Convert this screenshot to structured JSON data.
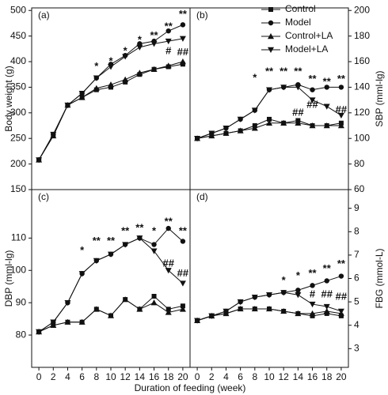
{
  "chart_data": [
    {
      "type": "line",
      "panel_label": "(a)",
      "ylabel": "Body weight (g)",
      "x": [
        0,
        2,
        4,
        6,
        8,
        10,
        12,
        14,
        16,
        18,
        20
      ],
      "xlim": [
        -1,
        21
      ],
      "ylim": [
        150,
        505
      ],
      "yticks": [
        150,
        200,
        250,
        300,
        350,
        400,
        450,
        500
      ],
      "series": [
        {
          "name": "Control",
          "marker": "square",
          "color": "#111",
          "values": [
            208,
            255,
            315,
            330,
            345,
            350,
            360,
            375,
            385,
            390,
            395
          ]
        },
        {
          "name": "Model",
          "marker": "circle",
          "color": "#111",
          "values": [
            208,
            258,
            315,
            338,
            368,
            395,
            412,
            435,
            440,
            460,
            472
          ]
        },
        {
          "name": "Control+LA",
          "marker": "triangle",
          "color": "#111",
          "values": [
            208,
            255,
            315,
            330,
            348,
            355,
            365,
            378,
            385,
            392,
            400
          ]
        },
        {
          "name": "Model+LA",
          "marker": "triangle-down",
          "color": "#111",
          "values": [
            208,
            258,
            315,
            338,
            368,
            390,
            410,
            428,
            435,
            440,
            445
          ]
        }
      ],
      "annotations": [
        {
          "x": 8,
          "y": 390,
          "text": "*",
          "color": "#2b3a8f"
        },
        {
          "x": 10,
          "y": 400,
          "text": "*",
          "color": "#2b3a8f"
        },
        {
          "x": 12,
          "y": 420,
          "text": "*",
          "color": "#2b3a8f"
        },
        {
          "x": 14,
          "y": 442,
          "text": "*",
          "color": "#2b3a8f"
        },
        {
          "x": 16,
          "y": 450,
          "text": "**",
          "color": "#2b3a8f"
        },
        {
          "x": 18,
          "y": 468,
          "text": "**",
          "color": "#2b3a8f"
        },
        {
          "x": 20,
          "y": 492,
          "text": "**",
          "color": "#8b1a4a"
        },
        {
          "x": 18,
          "y": 420,
          "text": "#",
          "color": "#999"
        },
        {
          "x": 20,
          "y": 418,
          "text": "##",
          "color": "#999"
        }
      ]
    },
    {
      "type": "line",
      "panel_label": "(b)",
      "ylabel": "SBP (mml-lg)",
      "yaxis": "right",
      "legend": "upper right",
      "x": [
        0,
        2,
        4,
        6,
        8,
        10,
        12,
        14,
        16,
        18,
        20
      ],
      "xlim": [
        -1,
        21
      ],
      "ylim": [
        60,
        202
      ],
      "yticks": [
        60,
        80,
        100,
        120,
        140,
        160,
        180,
        200
      ],
      "series": [
        {
          "name": "Control",
          "marker": "square",
          "color": "#111",
          "values": [
            100,
            102,
            104,
            106,
            110,
            115,
            112,
            114,
            110,
            110,
            112
          ]
        },
        {
          "name": "Model",
          "marker": "circle",
          "color": "#111",
          "values": [
            100,
            104,
            108,
            115,
            122,
            138,
            140,
            142,
            138,
            140,
            140
          ]
        },
        {
          "name": "Control+LA",
          "marker": "triangle",
          "color": "#111",
          "values": [
            100,
            102,
            104,
            106,
            108,
            112,
            112,
            112,
            110,
            110,
            110
          ]
        },
        {
          "name": "Model+LA",
          "marker": "triangle-down",
          "color": "#111",
          "values": [
            100,
            104,
            108,
            115,
            122,
            138,
            140,
            140,
            130,
            125,
            118
          ]
        }
      ],
      "annotations": [
        {
          "x": 8,
          "y": 147,
          "text": "*",
          "color": "#b8860b"
        },
        {
          "x": 10,
          "y": 152,
          "text": "**",
          "color": "#2b3a8f"
        },
        {
          "x": 12,
          "y": 152,
          "text": "**",
          "color": "#2b3a8f"
        },
        {
          "x": 14,
          "y": 152,
          "text": "**",
          "color": "#2b3a8f"
        },
        {
          "x": 16,
          "y": 146,
          "text": "**",
          "color": "#2b3a8f"
        },
        {
          "x": 18,
          "y": 144,
          "text": "**",
          "color": "#2b3a8f"
        },
        {
          "x": 20,
          "y": 146,
          "text": "**",
          "color": "#2b3a8f"
        },
        {
          "x": 14,
          "y": 120,
          "text": "##",
          "color": "#999"
        },
        {
          "x": 16,
          "y": 126,
          "text": "##",
          "color": "#999"
        },
        {
          "x": 20,
          "y": 122,
          "text": "##",
          "color": "#999"
        }
      ]
    },
    {
      "type": "line",
      "panel_label": "(c)",
      "ylabel": "DBP (mml-lg)",
      "xlabel": "Duration of feeding (week)",
      "x": [
        0,
        2,
        4,
        6,
        8,
        10,
        12,
        14,
        16,
        18,
        20
      ],
      "xlim": [
        -1,
        21
      ],
      "xticks": [
        0,
        2,
        4,
        6,
        8,
        10,
        12,
        14,
        16,
        18,
        20
      ],
      "ylim": [
        70,
        125
      ],
      "yticks": [
        80,
        90,
        100,
        110
      ],
      "series": [
        {
          "name": "Control",
          "marker": "square",
          "color": "#111",
          "values": [
            81,
            83,
            84,
            84,
            88,
            86,
            91,
            88,
            92,
            88,
            89
          ]
        },
        {
          "name": "Model",
          "marker": "circle",
          "color": "#111",
          "values": [
            81,
            84,
            90,
            99,
            103,
            105,
            108,
            110,
            108,
            113,
            109
          ]
        },
        {
          "name": "Control+LA",
          "marker": "triangle",
          "color": "#111",
          "values": [
            81,
            83,
            84,
            84,
            88,
            86,
            91,
            88,
            90,
            87,
            88
          ]
        },
        {
          "name": "Model+LA",
          "marker": "triangle-down",
          "color": "#111",
          "values": [
            81,
            84,
            90,
            99,
            103,
            105,
            108,
            110,
            106,
            100,
            96
          ]
        }
      ],
      "annotations": [
        {
          "x": 6,
          "y": 106,
          "text": "*",
          "color": "#2b3a8f"
        },
        {
          "x": 8,
          "y": 109,
          "text": "**",
          "color": "#2b3a8f"
        },
        {
          "x": 10,
          "y": 109,
          "text": "**",
          "color": "#2b3a8f"
        },
        {
          "x": 12,
          "y": 112,
          "text": "**",
          "color": "#2b3a8f"
        },
        {
          "x": 14,
          "y": 113,
          "text": "**",
          "color": "#2b3a8f"
        },
        {
          "x": 16,
          "y": 112,
          "text": "*",
          "color": "#2b3a8f"
        },
        {
          "x": 18,
          "y": 115,
          "text": "**",
          "color": "#2b3a8f"
        },
        {
          "x": 20,
          "y": 112,
          "text": "**",
          "color": "#2b3a8f"
        },
        {
          "x": 18,
          "y": 102,
          "text": "##",
          "color": "#999"
        },
        {
          "x": 20,
          "y": 99,
          "text": "##",
          "color": "#999"
        }
      ]
    },
    {
      "type": "line",
      "panel_label": "(d)",
      "ylabel": "FBG (mmol-L)",
      "yaxis": "right",
      "x": [
        0,
        2,
        4,
        6,
        8,
        10,
        12,
        14,
        16,
        18,
        20
      ],
      "xlim": [
        -1,
        21
      ],
      "xticks": [
        0,
        2,
        4,
        6,
        8,
        10,
        12,
        14,
        16,
        18,
        20
      ],
      "ylim": [
        2.2,
        9.8
      ],
      "yticks": [
        3,
        4,
        5,
        6,
        7,
        8,
        9
      ],
      "series": [
        {
          "name": "Control",
          "marker": "square",
          "color": "#111",
          "values": [
            4.2,
            4.4,
            4.5,
            4.7,
            4.7,
            4.7,
            4.6,
            4.5,
            4.4,
            4.5,
            4.4
          ]
        },
        {
          "name": "Model",
          "marker": "circle",
          "color": "#111",
          "values": [
            4.2,
            4.4,
            4.6,
            5.0,
            5.2,
            5.3,
            5.4,
            5.5,
            5.7,
            5.9,
            6.1
          ]
        },
        {
          "name": "Control+LA",
          "marker": "triangle",
          "color": "#111",
          "values": [
            4.2,
            4.4,
            4.5,
            4.7,
            4.7,
            4.7,
            4.6,
            4.5,
            4.5,
            4.6,
            4.5
          ]
        },
        {
          "name": "Model+LA",
          "marker": "triangle-down",
          "color": "#111",
          "values": [
            4.2,
            4.4,
            4.6,
            5.0,
            5.2,
            5.3,
            5.4,
            5.3,
            4.9,
            4.8,
            4.6
          ]
        }
      ],
      "annotations": [
        {
          "x": 12,
          "y": 5.9,
          "text": "*",
          "color": "#2b3a8f"
        },
        {
          "x": 14,
          "y": 6.1,
          "text": "*",
          "color": "#2b3a8f"
        },
        {
          "x": 16,
          "y": 6.2,
          "text": "**",
          "color": "#2b3a8f"
        },
        {
          "x": 18,
          "y": 6.4,
          "text": "**",
          "color": "#2b3a8f"
        },
        {
          "x": 20,
          "y": 6.6,
          "text": "**",
          "color": "#2b3a8f"
        },
        {
          "x": 16,
          "y": 5.3,
          "text": "#",
          "color": "#999"
        },
        {
          "x": 18,
          "y": 5.3,
          "text": "##",
          "color": "#999"
        },
        {
          "x": 20,
          "y": 5.2,
          "text": "##",
          "color": "#999"
        }
      ]
    }
  ]
}
